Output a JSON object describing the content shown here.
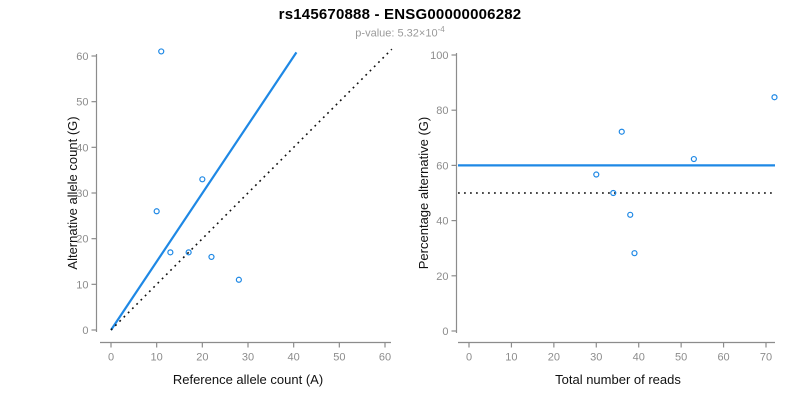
{
  "header": {
    "title": "rs145670888 - ENSG00000006282",
    "pvalue_label": "p-value: 5.32×10",
    "pvalue_exponent": "-4"
  },
  "colors": {
    "accent": "#1E88E5",
    "axis": "#8c8c8c",
    "tick_label": "#8c8c8c",
    "axis_title": "#111111",
    "line_black": "#111111",
    "title": "#000000",
    "subtitle": "#9a9a9a",
    "background": "#ffffff"
  },
  "chart_data": [
    {
      "name": "ref-vs-alt-scatter",
      "type": "scatter",
      "xlabel": "Reference allele count (A)",
      "ylabel": "Alternative allele count (G)",
      "xlim": [
        0,
        60
      ],
      "ylim": [
        0,
        60
      ],
      "xticks": [
        0,
        10,
        20,
        30,
        40,
        50,
        60
      ],
      "yticks": [
        0,
        10,
        20,
        30,
        40,
        50,
        60
      ],
      "grid": false,
      "legend": false,
      "points": [
        [
          11,
          61
        ],
        [
          10,
          26
        ],
        [
          13,
          17
        ],
        [
          17,
          17
        ],
        [
          20,
          33
        ],
        [
          22,
          16
        ],
        [
          28,
          11
        ]
      ],
      "lines": [
        {
          "name": "fit-line",
          "x1": 0,
          "y1": 0,
          "x2": 40.6,
          "y2": 60.8,
          "style": "solid",
          "color": "blue"
        },
        {
          "name": "identity-line",
          "x1": 0,
          "y1": 0,
          "x2": 61.5,
          "y2": 61.5,
          "style": "dotted",
          "color": "black"
        }
      ]
    },
    {
      "name": "reads-vs-percentage-scatter",
      "type": "scatter",
      "xlabel": "Total number of reads",
      "ylabel": "Percentage alternative (G)",
      "xlim": [
        0,
        70
      ],
      "ylim": [
        0,
        100
      ],
      "xticks": [
        0,
        10,
        20,
        30,
        40,
        50,
        60,
        70
      ],
      "yticks": [
        0,
        20,
        40,
        60,
        80,
        100
      ],
      "grid": false,
      "legend": false,
      "points": [
        [
          72,
          84.7
        ],
        [
          36,
          72.2
        ],
        [
          30,
          56.7
        ],
        [
          34,
          50
        ],
        [
          53,
          62.3
        ],
        [
          38,
          42.1
        ],
        [
          39,
          28.2
        ]
      ],
      "lines": [
        {
          "name": "estimated-proportion-line",
          "h": 60,
          "style": "solid",
          "color": "blue"
        },
        {
          "name": "null-proportion-line",
          "h": 50,
          "style": "dotted",
          "color": "black"
        }
      ]
    }
  ]
}
